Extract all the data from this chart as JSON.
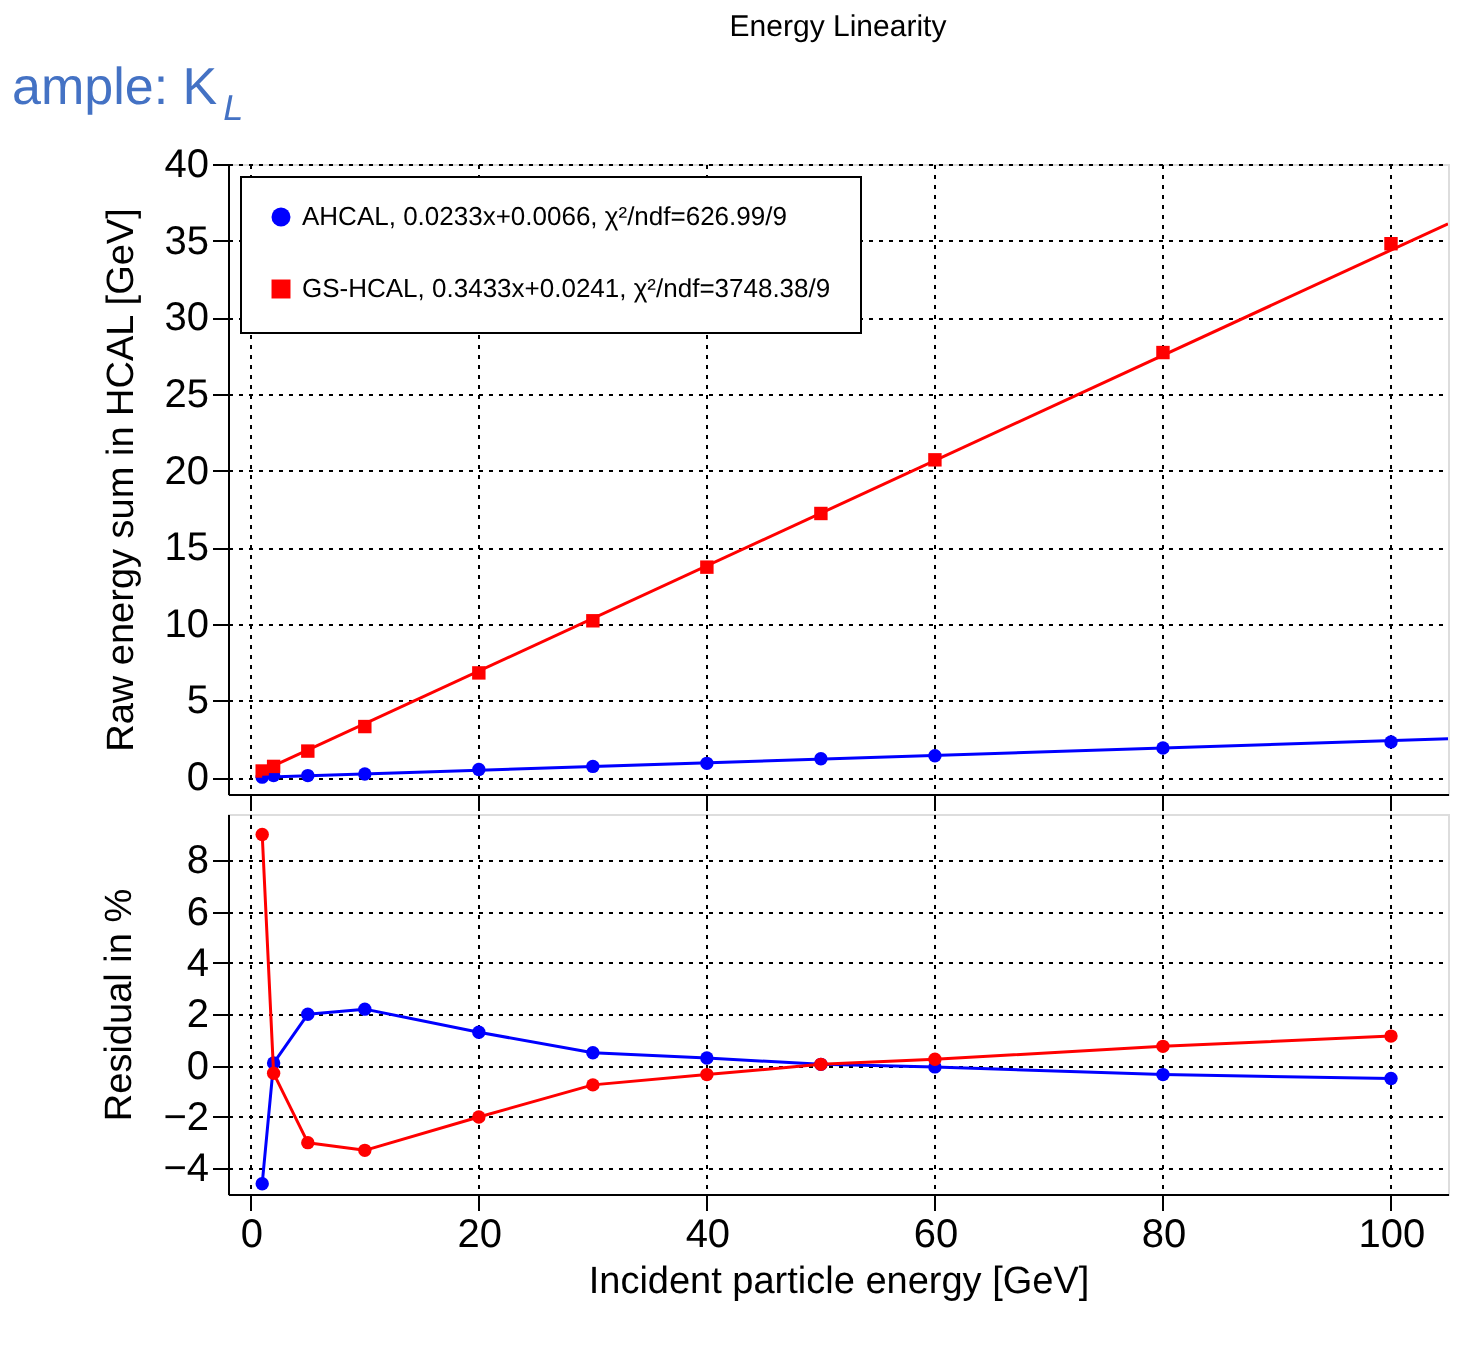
{
  "chart_data": [
    {
      "type": "scatter",
      "title": "Energy Linearity",
      "ylabel": "Raw energy sum in HCAL [GeV]",
      "xlim": [
        -2,
        105
      ],
      "ylim": [
        -1.1,
        40
      ],
      "xticks": [
        0,
        20,
        40,
        60,
        80,
        100
      ],
      "yticks": [
        0,
        5,
        10,
        15,
        20,
        25,
        30,
        35,
        40
      ],
      "tick_labels": "y",
      "grid": true,
      "legend": "top left",
      "annotations": [
        "ample: K$_{L}$"
      ],
      "series": [
        {
          "name": "AHCAL,   0.0233x+0.0066, χ²/ndf=626.99/9",
          "color": "#0000ff",
          "marker": "circle",
          "x": [
            1,
            2,
            5,
            10,
            20,
            30,
            40,
            50,
            60,
            80,
            100
          ],
          "values": [
            0.0,
            0.1,
            0.1,
            0.2,
            0.5,
            0.7,
            0.9,
            1.2,
            1.4,
            1.9,
            2.3
          ]
        },
        {
          "name": "GS-HCAL, 0.3433x+0.0241, χ²/ndf=3748.38/9",
          "color": "#ff0000",
          "marker": "square",
          "x": [
            1,
            2,
            5,
            10,
            20,
            30,
            40,
            50,
            60,
            80,
            100
          ],
          "values": [
            0.4,
            0.7,
            1.7,
            3.3,
            6.8,
            10.2,
            13.7,
            17.2,
            20.7,
            27.7,
            34.8
          ]
        },
        {
          "type": "line",
          "color": "#0000ff",
          "x": [
            1,
            105
          ],
          "values": [
            0.0,
            2.5
          ]
        },
        {
          "type": "line",
          "color": "#ff0000",
          "x": [
            1,
            105
          ],
          "values": [
            0.4,
            36.1
          ]
        }
      ]
    },
    {
      "type": "line",
      "xlabel": "Incident particle energy [GeV]",
      "ylabel": "Residual in %",
      "xlim": [
        -2,
        105
      ],
      "ylim": [
        -5,
        9.8
      ],
      "xticks": [
        0,
        20,
        40,
        60,
        80,
        100
      ],
      "yticks": [
        -4,
        -2,
        0,
        2,
        4,
        6,
        8
      ],
      "grid": true,
      "marker": "circle",
      "series": [
        {
          "color": "#0000ff",
          "x": [
            1,
            2,
            5,
            10,
            20,
            30,
            40,
            50,
            60,
            80,
            100
          ],
          "values": [
            -4.6,
            0.1,
            2.0,
            2.2,
            1.3,
            0.5,
            0.3,
            0.05,
            -0.05,
            -0.35,
            -0.5
          ]
        },
        {
          "color": "#ff0000",
          "x": [
            1,
            2,
            5,
            10,
            20,
            30,
            40,
            50,
            60,
            80,
            100
          ],
          "values": [
            9.0,
            -0.3,
            -3.0,
            -3.3,
            -2.0,
            -0.75,
            -0.35,
            0.05,
            0.25,
            0.75,
            1.15
          ]
        }
      ]
    }
  ]
}
